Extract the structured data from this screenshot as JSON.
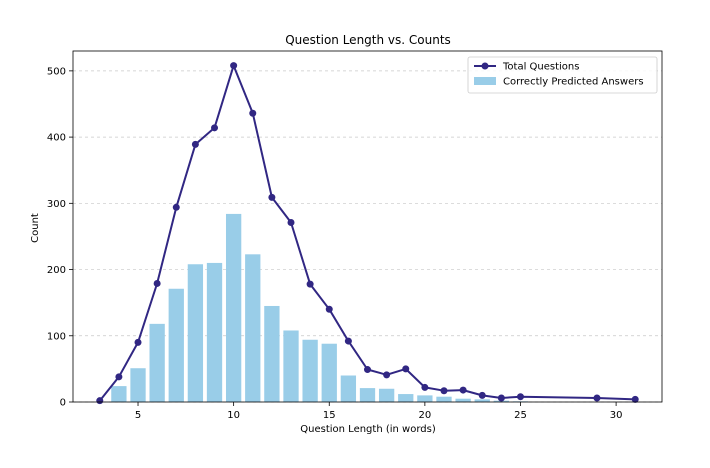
{
  "chart_data": {
    "type": "bar",
    "title": "Question Length vs. Counts",
    "xlabel": "Question Length (in words)",
    "ylabel": "Count",
    "xlim": [
      1.6,
      32.4
    ],
    "ylim": [
      0,
      530
    ],
    "xticks": [
      5,
      10,
      15,
      20,
      25,
      30
    ],
    "yticks": [
      0,
      100,
      200,
      300,
      400,
      500
    ],
    "grid": "y-dashed",
    "legend": "top-right",
    "series": [
      {
        "name": "Total Questions",
        "kind": "line",
        "color": "#312783",
        "x": [
          3,
          4,
          5,
          6,
          7,
          8,
          9,
          10,
          11,
          12,
          13,
          14,
          15,
          16,
          17,
          18,
          19,
          20,
          21,
          22,
          23,
          24,
          25,
          29,
          31
        ],
        "y": [
          2,
          38,
          90,
          179,
          294,
          389,
          414,
          508,
          436,
          309,
          271,
          178,
          140,
          92,
          49,
          41,
          50,
          22,
          17,
          18,
          10,
          6,
          8,
          6,
          4
        ]
      },
      {
        "name": "Correctly Predicted Answers",
        "kind": "bar",
        "color": "#99cde8",
        "x": [
          4,
          5,
          6,
          7,
          8,
          9,
          10,
          11,
          12,
          13,
          14,
          15,
          16,
          17,
          18,
          19,
          20,
          21,
          22,
          23,
          24,
          25
        ],
        "y": [
          24,
          51,
          118,
          171,
          208,
          210,
          284,
          223,
          145,
          108,
          94,
          88,
          40,
          21,
          20,
          12,
          10,
          8,
          5,
          4,
          2,
          1
        ]
      }
    ]
  }
}
